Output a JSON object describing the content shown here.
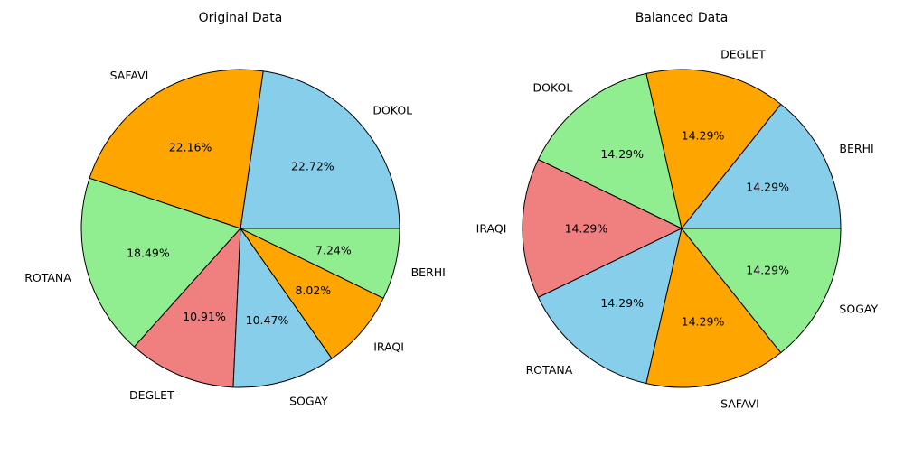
{
  "chart_data": [
    {
      "type": "pie",
      "title": "Original Data",
      "categories": [
        "DOKOL",
        "SAFAVI",
        "ROTANA",
        "DEGLET",
        "SOGAY",
        "IRAQI",
        "BERHI"
      ],
      "values": [
        22.72,
        22.16,
        18.49,
        10.91,
        10.47,
        8.02,
        7.24
      ],
      "value_labels": [
        "22.72%",
        "22.16%",
        "18.49%",
        "10.91%",
        "10.47%",
        "8.02%",
        "7.24%"
      ],
      "colors": [
        "#87CEEB",
        "#FFA500",
        "#90EE90",
        "#F08080",
        "#87CEEB",
        "#FFA500",
        "#90EE90"
      ],
      "start_angle_deg": 0,
      "direction": "counterclockwise",
      "edge_color": "#000000"
    },
    {
      "type": "pie",
      "title": "Balanced Data",
      "categories": [
        "BERHI",
        "DEGLET",
        "DOKOL",
        "IRAQI",
        "ROTANA",
        "SAFAVI",
        "SOGAY"
      ],
      "values": [
        14.29,
        14.29,
        14.29,
        14.29,
        14.29,
        14.29,
        14.29
      ],
      "value_labels": [
        "14.29%",
        "14.29%",
        "14.29%",
        "14.29%",
        "14.29%",
        "14.29%",
        "14.29%"
      ],
      "colors": [
        "#87CEEB",
        "#FFA500",
        "#90EE90",
        "#F08080",
        "#87CEEB",
        "#FFA500",
        "#90EE90"
      ],
      "start_angle_deg": 0,
      "direction": "counterclockwise",
      "edge_color": "#000000"
    }
  ]
}
